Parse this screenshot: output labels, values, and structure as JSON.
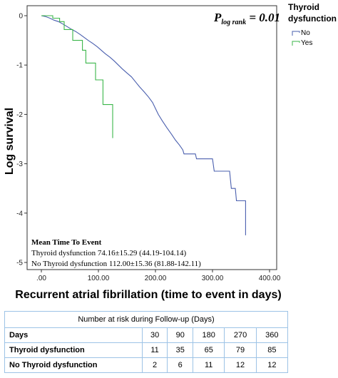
{
  "chart_data": {
    "type": "line",
    "title": "",
    "ylabel": "Log survival",
    "xlabel": "Recurrent atrial fibrillation (time to event in days)",
    "xlim": [
      0,
      400
    ],
    "ylim": [
      -5,
      0
    ],
    "xticks": [
      ".00",
      "100.00",
      "200.00",
      "300.00",
      "400.00"
    ],
    "yticks": [
      "0",
      "-1",
      "-2",
      "-3",
      "-4",
      "-5"
    ],
    "grid": false,
    "legend": {
      "title": "Thyroid dysfunction",
      "placement": "top-right-outside",
      "entries": [
        {
          "name": "No",
          "color": "#4a5fae"
        },
        {
          "name": "Yes",
          "color": "#3bb64a"
        }
      ]
    },
    "p_value": {
      "prefix": "P",
      "subscript": "log rank",
      "value": " = 0.01"
    },
    "annotation": {
      "title": "Mean Time To Event",
      "lines": [
        "Thyroid  dysfunction 74.16±15.29 (44.19-104.14)",
        "No Thyroid dysfunction 112.00±15.36 (81.88-142.11)"
      ]
    },
    "series": [
      {
        "name": "No",
        "color": "#4a5fae",
        "points": [
          [
            0,
            0
          ],
          [
            8,
            -0.02
          ],
          [
            15,
            -0.05
          ],
          [
            22,
            -0.09
          ],
          [
            30,
            -0.12
          ],
          [
            38,
            -0.17
          ],
          [
            45,
            -0.22
          ],
          [
            52,
            -0.27
          ],
          [
            60,
            -0.32
          ],
          [
            68,
            -0.38
          ],
          [
            75,
            -0.44
          ],
          [
            82,
            -0.5
          ],
          [
            90,
            -0.56
          ],
          [
            98,
            -0.63
          ],
          [
            105,
            -0.7
          ],
          [
            112,
            -0.77
          ],
          [
            120,
            -0.84
          ],
          [
            128,
            -0.92
          ],
          [
            135,
            -1.0
          ],
          [
            142,
            -1.08
          ],
          [
            150,
            -1.16
          ],
          [
            158,
            -1.24
          ],
          [
            165,
            -1.34
          ],
          [
            172,
            -1.44
          ],
          [
            180,
            -1.54
          ],
          [
            188,
            -1.65
          ],
          [
            195,
            -1.76
          ],
          [
            200,
            -1.88
          ],
          [
            205,
            -2.0
          ],
          [
            212,
            -2.13
          ],
          [
            220,
            -2.27
          ],
          [
            228,
            -2.4
          ],
          [
            235,
            -2.52
          ],
          [
            242,
            -2.62
          ],
          [
            248,
            -2.72
          ],
          [
            250,
            -2.8
          ],
          [
            270,
            -2.8
          ],
          [
            272,
            -2.9
          ],
          [
            300,
            -2.9
          ],
          [
            303,
            -3.15
          ],
          [
            330,
            -3.15
          ],
          [
            333,
            -3.5
          ],
          [
            340,
            -3.5
          ],
          [
            342,
            -3.75
          ],
          [
            358,
            -3.75
          ],
          [
            358,
            -4.45
          ]
        ]
      },
      {
        "name": "Yes",
        "color": "#3bb64a",
        "points": [
          [
            0,
            0
          ],
          [
            20,
            0
          ],
          [
            20,
            -0.05
          ],
          [
            32,
            -0.05
          ],
          [
            32,
            -0.12
          ],
          [
            40,
            -0.12
          ],
          [
            40,
            -0.28
          ],
          [
            55,
            -0.28
          ],
          [
            55,
            -0.5
          ],
          [
            72,
            -0.5
          ],
          [
            72,
            -0.7
          ],
          [
            78,
            -0.7
          ],
          [
            78,
            -0.96
          ],
          [
            95,
            -0.96
          ],
          [
            95,
            -1.3
          ],
          [
            108,
            -1.3
          ],
          [
            108,
            -1.8
          ],
          [
            125,
            -1.8
          ],
          [
            125,
            -2.48
          ]
        ]
      }
    ]
  },
  "risk_table": {
    "caption": "Number at risk during Follow-up (Days)",
    "header": {
      "label": "Days",
      "values": [
        "30",
        "90",
        "180",
        "270",
        "360"
      ]
    },
    "rows": [
      {
        "label": "Thyroid dysfunction",
        "values": [
          "11",
          "35",
          "65",
          "79",
          "85"
        ]
      },
      {
        "label": "No Thyroid dysfunction",
        "values": [
          "2",
          "6",
          "11",
          "12",
          "12"
        ]
      }
    ]
  }
}
